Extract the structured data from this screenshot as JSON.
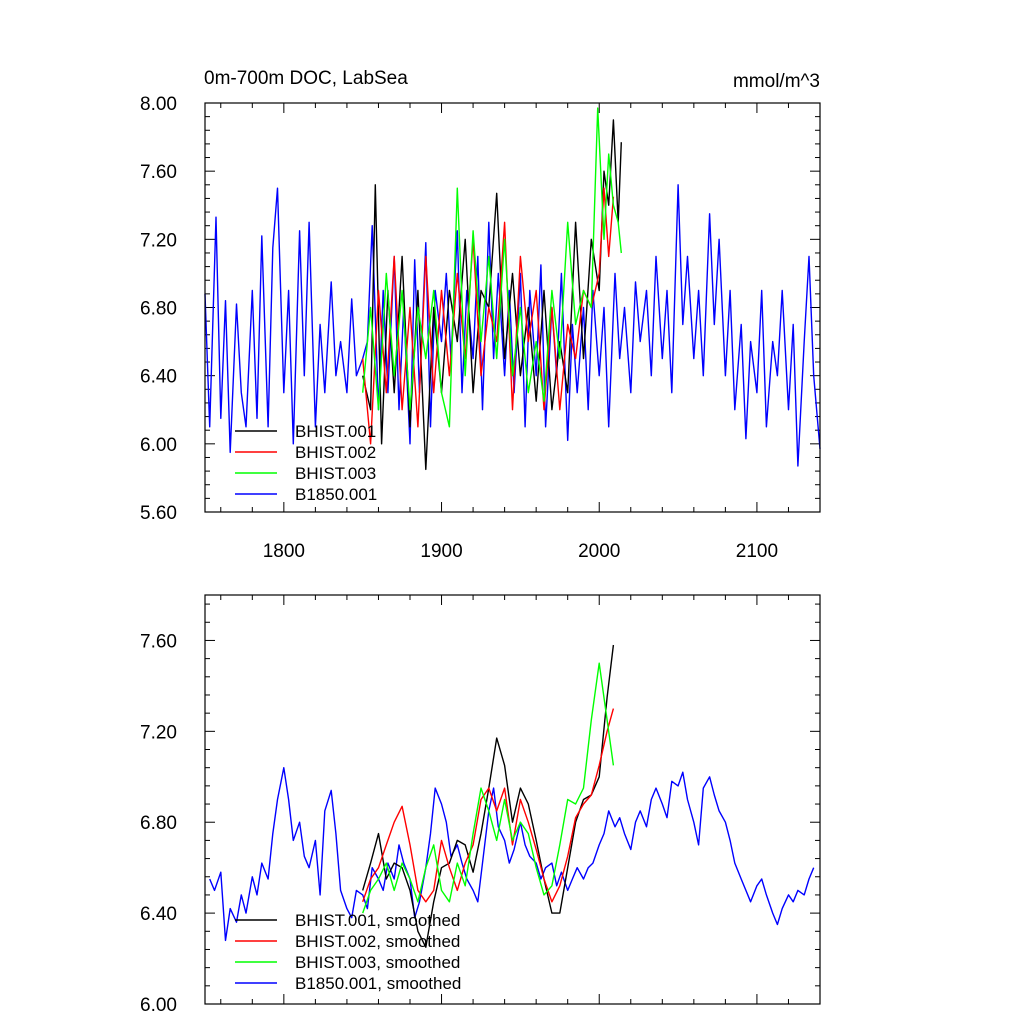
{
  "chart_data": [
    {
      "type": "line",
      "title": "0m-700m DOC, LabSea",
      "units": "mmol/m^3",
      "xlim": [
        1750,
        2140
      ],
      "ylim": [
        5.6,
        8.0
      ],
      "xticks": [
        1800,
        1900,
        2000,
        2100
      ],
      "xtick_labels": [
        "1800",
        "1900",
        "2000",
        "2100"
      ],
      "yticks": [
        5.6,
        6.0,
        6.4,
        6.8,
        7.2,
        7.6,
        8.0
      ],
      "ytick_labels": [
        "5.60",
        "6.00",
        "6.40",
        "6.80",
        "7.20",
        "7.60",
        "8.00"
      ],
      "legend_position": "bottom-left",
      "series": [
        {
          "name": "BHIST.001",
          "color": "#000000",
          "x": [
            1850,
            1855,
            1858,
            1862,
            1866,
            1870,
            1875,
            1880,
            1885,
            1890,
            1895,
            1900,
            1905,
            1910,
            1915,
            1920,
            1925,
            1930,
            1935,
            1940,
            1945,
            1950,
            1955,
            1960,
            1965,
            1970,
            1975,
            1980,
            1985,
            1990,
            1995,
            2000,
            2003,
            2006,
            2009,
            2012,
            2014
          ],
          "y": [
            6.4,
            6.2,
            7.52,
            6.0,
            6.9,
            6.3,
            7.1,
            6.1,
            6.9,
            5.85,
            6.8,
            6.3,
            6.9,
            6.6,
            7.2,
            6.3,
            6.9,
            6.8,
            7.47,
            6.5,
            7.0,
            6.4,
            6.8,
            6.25,
            6.9,
            6.2,
            6.6,
            6.3,
            7.3,
            6.5,
            7.2,
            6.9,
            7.6,
            7.4,
            7.9,
            7.3,
            7.77
          ]
        },
        {
          "name": "BHIST.002",
          "color": "#ff0000",
          "x": [
            1850,
            1855,
            1860,
            1865,
            1870,
            1875,
            1880,
            1885,
            1890,
            1895,
            1900,
            1905,
            1910,
            1915,
            1920,
            1925,
            1930,
            1935,
            1940,
            1945,
            1950,
            1955,
            1960,
            1965,
            1970,
            1975,
            1980,
            1985,
            1990,
            1995,
            2000,
            2003,
            2006,
            2009
          ],
          "y": [
            6.5,
            6.0,
            6.9,
            6.3,
            7.1,
            6.2,
            6.8,
            6.1,
            7.1,
            6.3,
            6.9,
            6.4,
            7.0,
            6.5,
            7.2,
            6.4,
            6.8,
            6.6,
            7.3,
            6.2,
            7.1,
            6.6,
            6.9,
            6.2,
            6.8,
            6.2,
            6.7,
            6.5,
            6.9,
            6.8,
            7.0,
            7.5,
            7.1,
            7.45
          ]
        },
        {
          "name": "BHIST.003",
          "color": "#00ff00",
          "x": [
            1850,
            1855,
            1860,
            1865,
            1870,
            1875,
            1880,
            1885,
            1890,
            1895,
            1900,
            1905,
            1910,
            1915,
            1920,
            1925,
            1930,
            1935,
            1940,
            1945,
            1950,
            1955,
            1960,
            1965,
            1970,
            1975,
            1980,
            1985,
            1990,
            1995,
            1999,
            2003,
            2006,
            2009,
            2012,
            2014
          ],
          "y": [
            6.3,
            6.8,
            6.2,
            7.0,
            6.4,
            6.9,
            6.2,
            6.8,
            6.5,
            6.9,
            6.3,
            6.1,
            7.5,
            6.4,
            7.25,
            6.6,
            7.1,
            6.5,
            7.2,
            6.4,
            6.8,
            6.3,
            6.6,
            6.25,
            6.9,
            6.5,
            7.3,
            6.7,
            6.9,
            6.8,
            7.97,
            7.2,
            7.7,
            7.4,
            7.3,
            7.12
          ]
        },
        {
          "name": "B1850.001",
          "color": "#0000ff",
          "x": [
            1750,
            1753,
            1757,
            1760,
            1763,
            1766,
            1770,
            1773,
            1776,
            1780,
            1783,
            1786,
            1790,
            1793,
            1796,
            1800,
            1803,
            1806,
            1810,
            1813,
            1816,
            1820,
            1823,
            1826,
            1830,
            1833,
            1836,
            1840,
            1843,
            1846,
            1850,
            1853,
            1856,
            1860,
            1863,
            1866,
            1870,
            1873,
            1876,
            1880,
            1883,
            1886,
            1890,
            1893,
            1896,
            1900,
            1903,
            1906,
            1910,
            1913,
            1916,
            1920,
            1923,
            1926,
            1930,
            1933,
            1936,
            1940,
            1943,
            1946,
            1950,
            1953,
            1956,
            1960,
            1963,
            1966,
            1970,
            1973,
            1976,
            1980,
            1983,
            1986,
            1990,
            1993,
            1996,
            2000,
            2003,
            2006,
            2010,
            2013,
            2016,
            2020,
            2023,
            2026,
            2030,
            2033,
            2036,
            2040,
            2043,
            2046,
            2050,
            2053,
            2056,
            2060,
            2063,
            2066,
            2070,
            2073,
            2076,
            2080,
            2083,
            2086,
            2090,
            2093,
            2096,
            2100,
            2103,
            2106,
            2110,
            2113,
            2116,
            2120,
            2123,
            2126,
            2130,
            2133,
            2136,
            2140
          ],
          "y": [
            6.88,
            6.1,
            7.33,
            6.15,
            6.84,
            5.95,
            6.82,
            6.3,
            6.1,
            6.9,
            6.15,
            7.22,
            6.1,
            7.15,
            7.5,
            6.3,
            6.9,
            6.0,
            7.25,
            6.4,
            7.3,
            6.1,
            6.7,
            6.3,
            6.95,
            6.4,
            6.6,
            6.3,
            6.85,
            6.4,
            6.5,
            6.6,
            7.28,
            6.2,
            6.9,
            6.3,
            7.1,
            6.2,
            6.8,
            6.0,
            7.08,
            6.3,
            7.18,
            6.1,
            6.9,
            6.6,
            7.0,
            6.5,
            7.25,
            6.3,
            6.9,
            6.5,
            7.1,
            6.2,
            7.3,
            6.5,
            7.0,
            6.4,
            6.9,
            6.3,
            7.0,
            6.1,
            6.9,
            6.4,
            7.05,
            6.1,
            6.8,
            6.4,
            7.0,
            6.02,
            6.7,
            6.3,
            6.8,
            6.2,
            6.9,
            6.4,
            6.8,
            6.1,
            7.0,
            6.5,
            6.8,
            6.3,
            6.95,
            6.6,
            6.9,
            6.4,
            7.1,
            6.5,
            6.9,
            6.3,
            7.52,
            6.7,
            7.1,
            6.5,
            6.9,
            6.4,
            7.35,
            6.7,
            7.2,
            6.4,
            6.9,
            6.2,
            6.7,
            6.03,
            6.6,
            6.3,
            6.9,
            6.1,
            6.6,
            6.4,
            6.9,
            6.2,
            6.7,
            5.87,
            6.6,
            7.1,
            6.4,
            5.97
          ]
        }
      ]
    },
    {
      "type": "line",
      "title": "",
      "xlim": [
        1750,
        2140
      ],
      "ylim": [
        6.0,
        7.8
      ],
      "xticks": [
        1800,
        1900,
        2000,
        2100
      ],
      "yticks": [
        6.0,
        6.4,
        6.8,
        7.2,
        7.6
      ],
      "ytick_labels": [
        "6.00",
        "6.40",
        "6.80",
        "7.20",
        "7.60"
      ],
      "legend_position": "bottom-left",
      "series": [
        {
          "name": "BHIST.001, smoothed",
          "color": "#000000",
          "x": [
            1850,
            1855,
            1860,
            1865,
            1870,
            1875,
            1880,
            1885,
            1890,
            1895,
            1900,
            1905,
            1910,
            1915,
            1920,
            1925,
            1930,
            1935,
            1940,
            1945,
            1950,
            1955,
            1960,
            1965,
            1970,
            1975,
            1980,
            1985,
            1990,
            1995,
            2000,
            2005,
            2009
          ],
          "y": [
            6.5,
            6.62,
            6.75,
            6.55,
            6.62,
            6.6,
            6.5,
            6.32,
            6.25,
            6.45,
            6.6,
            6.62,
            6.72,
            6.7,
            6.58,
            6.75,
            6.95,
            7.17,
            7.05,
            6.8,
            6.95,
            6.88,
            6.72,
            6.55,
            6.4,
            6.4,
            6.6,
            6.8,
            6.9,
            6.92,
            7.0,
            7.35,
            7.58
          ]
        },
        {
          "name": "BHIST.002, smoothed",
          "color": "#ff0000",
          "x": [
            1850,
            1855,
            1860,
            1865,
            1870,
            1875,
            1880,
            1885,
            1890,
            1895,
            1900,
            1905,
            1910,
            1915,
            1920,
            1925,
            1930,
            1935,
            1940,
            1945,
            1950,
            1955,
            1960,
            1965,
            1970,
            1975,
            1980,
            1985,
            1990,
            1995,
            2000,
            2005,
            2009
          ],
          "y": [
            6.45,
            6.55,
            6.6,
            6.7,
            6.8,
            6.87,
            6.7,
            6.5,
            6.45,
            6.5,
            6.72,
            6.6,
            6.5,
            6.62,
            6.7,
            6.9,
            6.95,
            6.85,
            6.95,
            6.7,
            6.9,
            6.8,
            6.68,
            6.55,
            6.45,
            6.52,
            6.65,
            6.82,
            6.88,
            6.92,
            7.05,
            7.2,
            7.3
          ]
        },
        {
          "name": "BHIST.003, smoothed",
          "color": "#00ff00",
          "x": [
            1850,
            1855,
            1860,
            1865,
            1870,
            1875,
            1880,
            1885,
            1890,
            1895,
            1900,
            1905,
            1910,
            1915,
            1920,
            1925,
            1930,
            1935,
            1940,
            1945,
            1950,
            1955,
            1960,
            1965,
            1970,
            1975,
            1980,
            1985,
            1990,
            1995,
            2000,
            2005,
            2009
          ],
          "y": [
            6.4,
            6.5,
            6.55,
            6.62,
            6.5,
            6.62,
            6.55,
            6.45,
            6.6,
            6.7,
            6.5,
            6.45,
            6.62,
            6.52,
            6.75,
            6.95,
            6.85,
            6.72,
            6.9,
            6.72,
            6.8,
            6.75,
            6.6,
            6.48,
            6.52,
            6.7,
            6.9,
            6.88,
            6.95,
            7.25,
            7.5,
            7.25,
            7.05
          ]
        },
        {
          "name": "B1850.001, smoothed",
          "color": "#0000ff",
          "x": [
            1753,
            1756,
            1760,
            1763,
            1766,
            1770,
            1773,
            1776,
            1780,
            1783,
            1786,
            1790,
            1793,
            1796,
            1800,
            1803,
            1806,
            1810,
            1813,
            1816,
            1820,
            1823,
            1826,
            1830,
            1833,
            1836,
            1840,
            1843,
            1846,
            1850,
            1853,
            1856,
            1860,
            1863,
            1866,
            1870,
            1873,
            1876,
            1880,
            1883,
            1886,
            1890,
            1893,
            1896,
            1900,
            1903,
            1906,
            1910,
            1913,
            1916,
            1920,
            1923,
            1926,
            1930,
            1933,
            1936,
            1940,
            1943,
            1946,
            1950,
            1953,
            1956,
            1960,
            1963,
            1966,
            1970,
            1973,
            1976,
            1980,
            1983,
            1986,
            1990,
            1993,
            1996,
            2000,
            2003,
            2006,
            2010,
            2013,
            2016,
            2020,
            2023,
            2026,
            2030,
            2033,
            2036,
            2040,
            2043,
            2046,
            2050,
            2053,
            2056,
            2060,
            2063,
            2066,
            2070,
            2073,
            2076,
            2080,
            2083,
            2086,
            2090,
            2093,
            2096,
            2100,
            2103,
            2106,
            2110,
            2113,
            2116,
            2120,
            2123,
            2126,
            2130,
            2133,
            2136
          ],
          "y": [
            6.55,
            6.5,
            6.58,
            6.28,
            6.42,
            6.36,
            6.48,
            6.4,
            6.56,
            6.48,
            6.62,
            6.55,
            6.75,
            6.9,
            7.04,
            6.9,
            6.72,
            6.8,
            6.65,
            6.6,
            6.72,
            6.48,
            6.85,
            6.94,
            6.75,
            6.5,
            6.42,
            6.38,
            6.5,
            6.48,
            6.42,
            6.6,
            6.55,
            6.5,
            6.62,
            6.55,
            6.7,
            6.62,
            6.55,
            6.38,
            6.45,
            6.6,
            6.75,
            6.95,
            6.88,
            6.8,
            6.65,
            6.7,
            6.62,
            6.55,
            6.5,
            6.45,
            6.62,
            6.85,
            6.95,
            6.78,
            6.72,
            6.62,
            6.68,
            6.8,
            6.7,
            6.65,
            6.62,
            6.55,
            6.6,
            6.62,
            6.52,
            6.58,
            6.5,
            6.55,
            6.6,
            6.55,
            6.6,
            6.62,
            6.7,
            6.75,
            6.85,
            6.78,
            6.82,
            6.75,
            6.68,
            6.8,
            6.85,
            6.78,
            6.9,
            6.95,
            6.88,
            6.82,
            6.98,
            6.96,
            7.02,
            6.9,
            6.8,
            6.7,
            6.95,
            7.0,
            6.92,
            6.85,
            6.8,
            6.72,
            6.62,
            6.55,
            6.5,
            6.45,
            6.52,
            6.55,
            6.48,
            6.4,
            6.35,
            6.42,
            6.48,
            6.45,
            6.5,
            6.48,
            6.55,
            6.6
          ]
        }
      ]
    }
  ]
}
